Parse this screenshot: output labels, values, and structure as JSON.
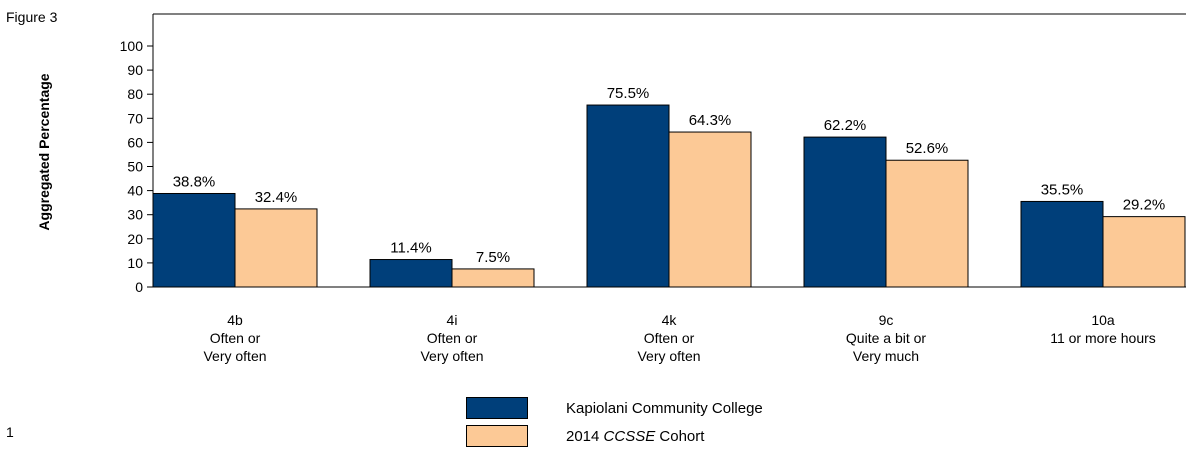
{
  "figure_label": "Figure 3",
  "page_number": "1",
  "colors": {
    "series_primary": "#003f7a",
    "series_secondary": "#fcc996",
    "axis": "#000000"
  },
  "chart_data": {
    "type": "bar",
    "title": "",
    "ylabel": "Aggregated Percentage",
    "xlabel": "",
    "ylim": [
      0,
      100
    ],
    "yticks": [
      0,
      10,
      20,
      30,
      40,
      50,
      60,
      70,
      80,
      90,
      100
    ],
    "grid": false,
    "legend_position": "bottom-center",
    "categories": [
      {
        "code": "4b",
        "lines": [
          "Often or",
          "Very often"
        ]
      },
      {
        "code": "4i",
        "lines": [
          "Often or",
          "Very often"
        ]
      },
      {
        "code": "4k",
        "lines": [
          "Often or",
          "Very often"
        ]
      },
      {
        "code": "9c",
        "lines": [
          "Quite a bit or",
          "Very much"
        ]
      },
      {
        "code": "10a",
        "lines": [
          "11 or more hours"
        ]
      }
    ],
    "series": [
      {
        "name": "Kapiolani Community College",
        "color": "#003f7a",
        "values": [
          38.8,
          11.4,
          75.5,
          62.2,
          35.5
        ],
        "labels": [
          "38.8%",
          "11.4%",
          "75.5%",
          "62.2%",
          "35.5%"
        ]
      },
      {
        "name": "2014 CCSSE Cohort",
        "color": "#fcc996",
        "values": [
          32.4,
          7.5,
          64.3,
          52.6,
          29.2
        ],
        "labels": [
          "32.4%",
          "7.5%",
          "64.3%",
          "52.6%",
          "29.2%"
        ]
      }
    ]
  },
  "legend": {
    "items": [
      {
        "label": "Kapiolani Community College"
      },
      {
        "label_prefix": "2014 ",
        "label_italic": "CCSSE",
        "label_suffix": " Cohort"
      }
    ]
  }
}
